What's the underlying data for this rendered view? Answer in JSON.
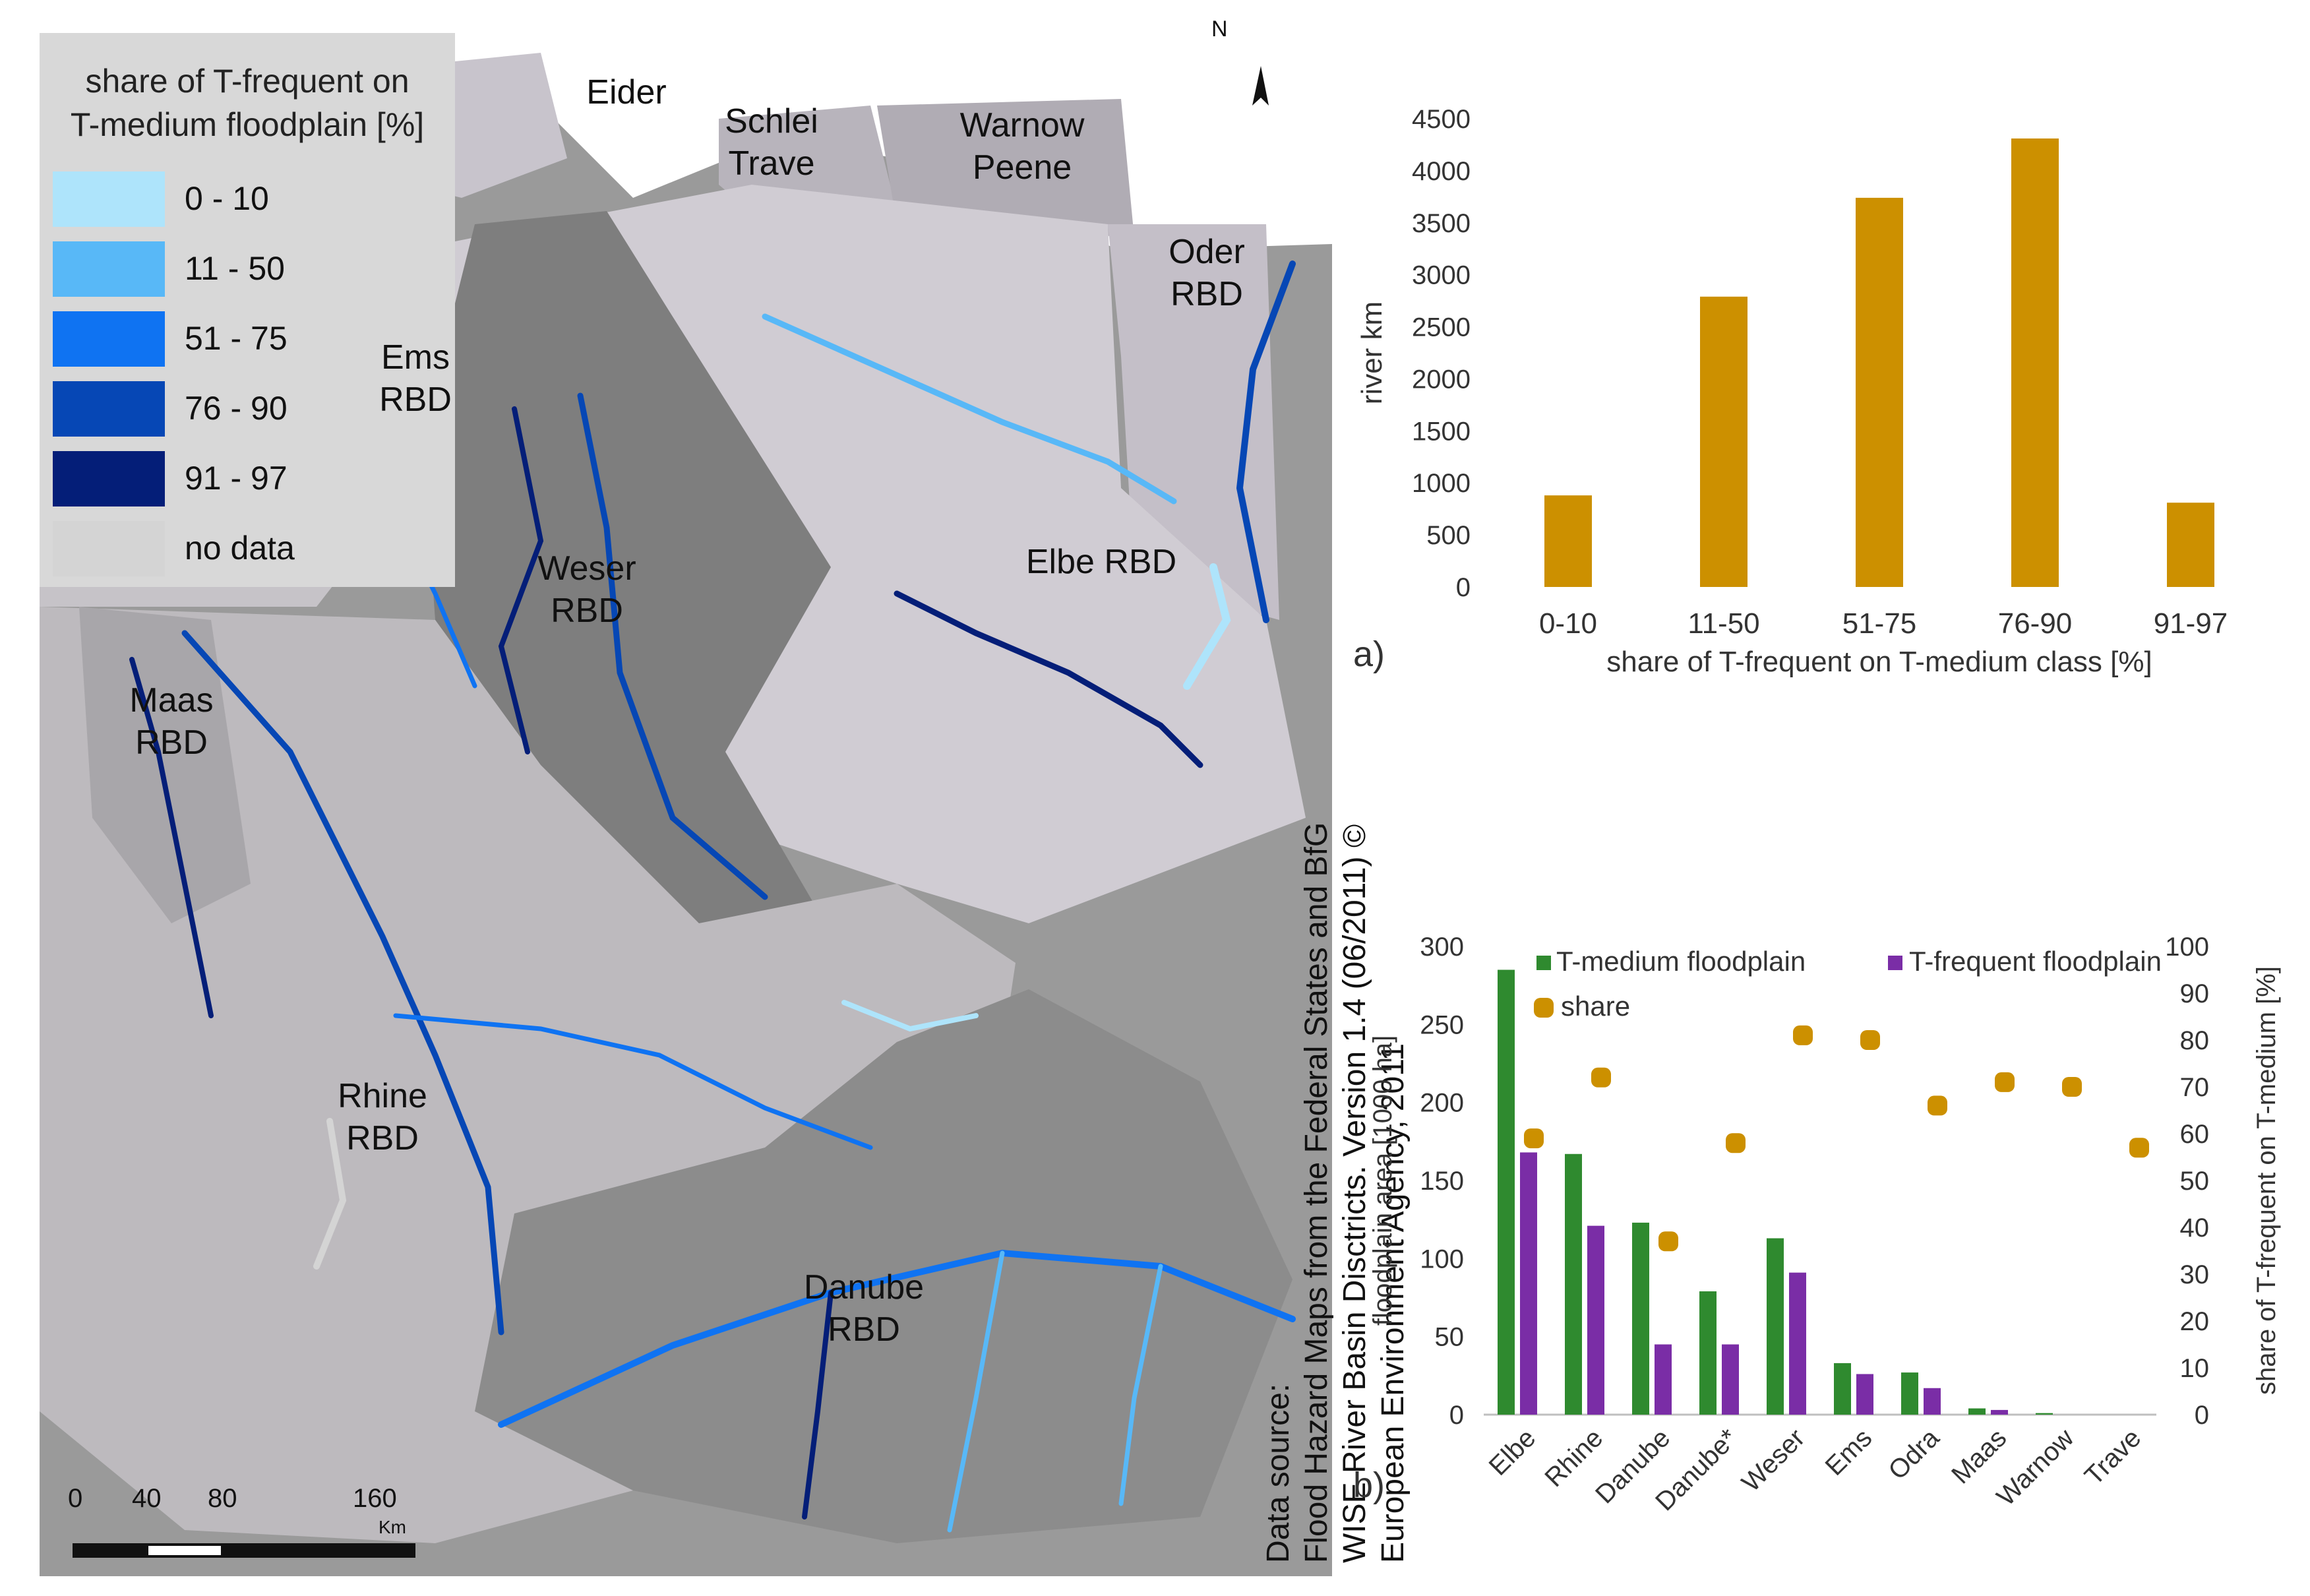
{
  "map": {
    "legend": {
      "title_line1": "share of T-frequent on",
      "title_line2": "T-medium floodplain [%]",
      "items": [
        {
          "label": "0 - 10",
          "color": "#aee4fb"
        },
        {
          "label": "11 - 50",
          "color": "#58b8f7"
        },
        {
          "label": "51 - 75",
          "color": "#0f73f2"
        },
        {
          "label": "76 - 90",
          "color": "#0647b5"
        },
        {
          "label": "91 - 97",
          "color": "#041e78"
        },
        {
          "label": "no data",
          "color": "#d4d4d4"
        }
      ]
    },
    "regions": [
      {
        "line1": "Eider",
        "line2": ""
      },
      {
        "line1": "Schlei",
        "line2": "Trave"
      },
      {
        "line1": "Warnow",
        "line2": "Peene"
      },
      {
        "line1": "Oder",
        "line2": "RBD"
      },
      {
        "line1": "Ems",
        "line2": "RBD"
      },
      {
        "line1": "Weser",
        "line2": "RBD"
      },
      {
        "line1": "Elbe RBD",
        "line2": ""
      },
      {
        "line1": "Maas",
        "line2": "RBD"
      },
      {
        "line1": "Rhine",
        "line2": "RBD"
      },
      {
        "line1": "Danube",
        "line2": "RBD"
      }
    ],
    "north_label": "N",
    "scale": {
      "ticks": [
        "0",
        "40",
        "80",
        "160"
      ],
      "unit": "Km"
    },
    "source_lines": [
      "Data source:",
      "Flood Hazard Maps from the Federal States and BfG",
      "WISE River Basin Disctricts. Version 1.4 (06/2011) ©",
      "European Environment Agency, 2011"
    ]
  },
  "chart_data": [
    {
      "type": "bar",
      "panel_label": "a)",
      "categories": [
        "0-10",
        "11-50",
        "51-75",
        "76-90",
        "91-97"
      ],
      "values": [
        880,
        2790,
        3740,
        4310,
        810
      ],
      "xlabel": "share of T-frequent on T-medium class [%]",
      "ylabel": "river km",
      "ylim": [
        0,
        4500
      ],
      "yticks": [
        "0",
        "500",
        "1000",
        "1500",
        "2000",
        "2500",
        "3000",
        "3500",
        "4000",
        "4500"
      ],
      "color": "#cc9000",
      "grid": false
    },
    {
      "type": "bar",
      "panel_label": "b)",
      "categories": [
        "Elbe",
        "Rhine",
        "Danube",
        "Danube*",
        "Weser",
        "Ems",
        "Odra",
        "Maas",
        "Warnow",
        "Trave"
      ],
      "series": [
        {
          "name": "T-medium floodplain",
          "values": [
            285,
            167,
            123,
            79,
            113,
            33,
            27,
            4,
            1,
            0
          ],
          "color": "#2f8a2f",
          "axis": "left"
        },
        {
          "name": "T-frequent floodplain",
          "values": [
            168,
            121,
            45,
            45,
            91,
            26,
            17,
            3,
            0,
            0
          ],
          "color": "#7a2da6",
          "axis": "left"
        },
        {
          "name": "share",
          "type": "scatter",
          "values": [
            59,
            72,
            37,
            58,
            81,
            80,
            66,
            71,
            70,
            57
          ],
          "color": "#cc9000",
          "axis": "right"
        }
      ],
      "ylabel": "floodplain area [1000 ha]",
      "ylabel_right": "share of T-frequent on T-medium [%]",
      "ylim": [
        0,
        300
      ],
      "ylim_right": [
        0,
        100
      ],
      "yticks": [
        "0",
        "50",
        "100",
        "150",
        "200",
        "250",
        "300"
      ],
      "yticks_right": [
        "0",
        "10",
        "20",
        "30",
        "40",
        "50",
        "60",
        "70",
        "80",
        "90",
        "100"
      ],
      "legend_position": "top",
      "grid": false
    }
  ]
}
